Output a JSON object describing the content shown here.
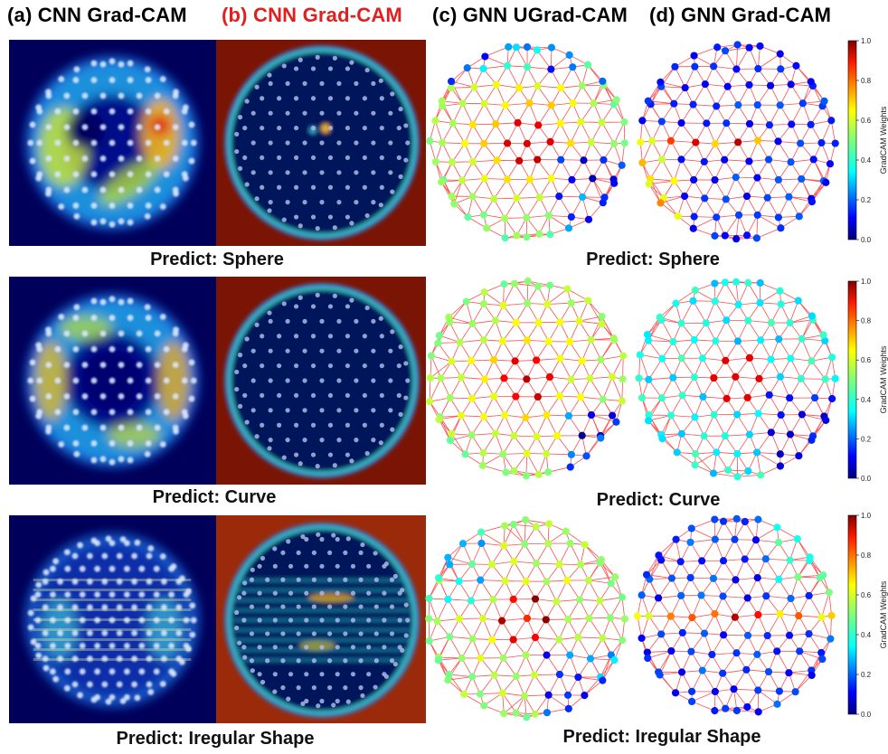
{
  "headers": [
    {
      "label": "(a) CNN Grad-CAM",
      "color": "#000000"
    },
    {
      "label": "(b) CNN Grad-CAM",
      "color": "#e0201e"
    },
    {
      "label": "(c) GNN UGrad-CAM",
      "color": "#000000"
    },
    {
      "label": "(d) GNN Grad-CAM",
      "color": "#000000"
    }
  ],
  "rows": [
    {
      "cnn_caption": "Predict: Sphere",
      "gnn_caption": "Predict: Sphere"
    },
    {
      "cnn_caption": "Predict: Curve",
      "gnn_caption": "Predict: Curve"
    },
    {
      "cnn_caption": "Predict: Iregular Shape",
      "gnn_caption": "Predict: Iregular Shape"
    }
  ],
  "colorbar": {
    "label": "GradCAM Weights",
    "ticks": [
      "0.0",
      "0.2",
      "0.4",
      "0.6",
      "0.8",
      "1.0"
    ],
    "colormap": "jet"
  },
  "colors": {
    "edge": "#ff3b3b",
    "cnn_bg_a": "#00005a",
    "cnn_bg_b": "#7a1404"
  }
}
